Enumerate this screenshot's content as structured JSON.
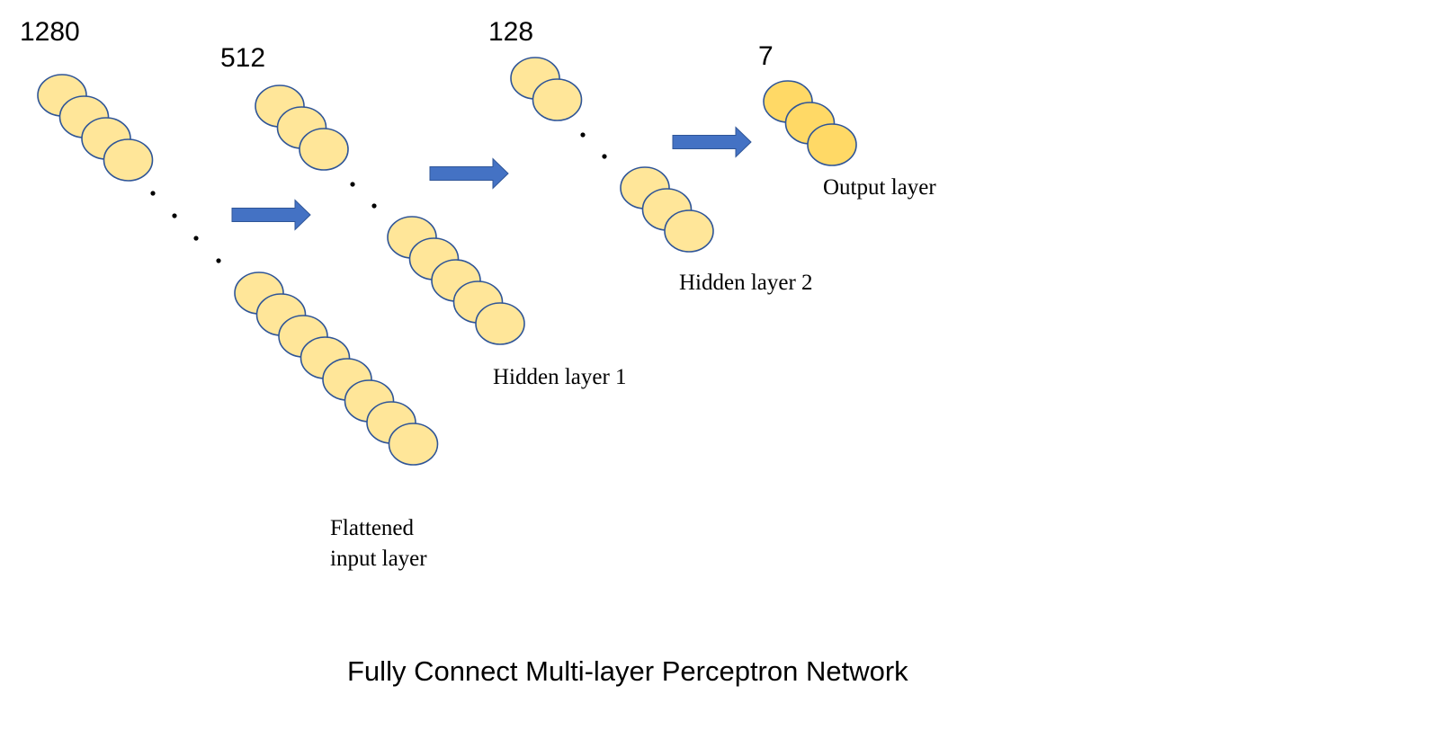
{
  "diagram": {
    "title": "Fully Connect Multi-layer Perceptron Network",
    "colors": {
      "neuron_fill": "#FFE699",
      "output_fill": "#FFD966",
      "neuron_stroke": "#2F5597",
      "arrow": "#4472C4",
      "dot": "#000000"
    },
    "layers": [
      {
        "id": "input",
        "count_text": "1280",
        "label_lines": [
          "Flattened",
          "input layer"
        ]
      },
      {
        "id": "hidden1",
        "count_text": "512",
        "label_lines": [
          "Hidden layer 1"
        ]
      },
      {
        "id": "hidden2",
        "count_text": "128",
        "label_lines": [
          "Hidden layer 2"
        ]
      },
      {
        "id": "output",
        "count_text": "7",
        "label_lines": [
          "Output layer"
        ]
      }
    ]
  }
}
